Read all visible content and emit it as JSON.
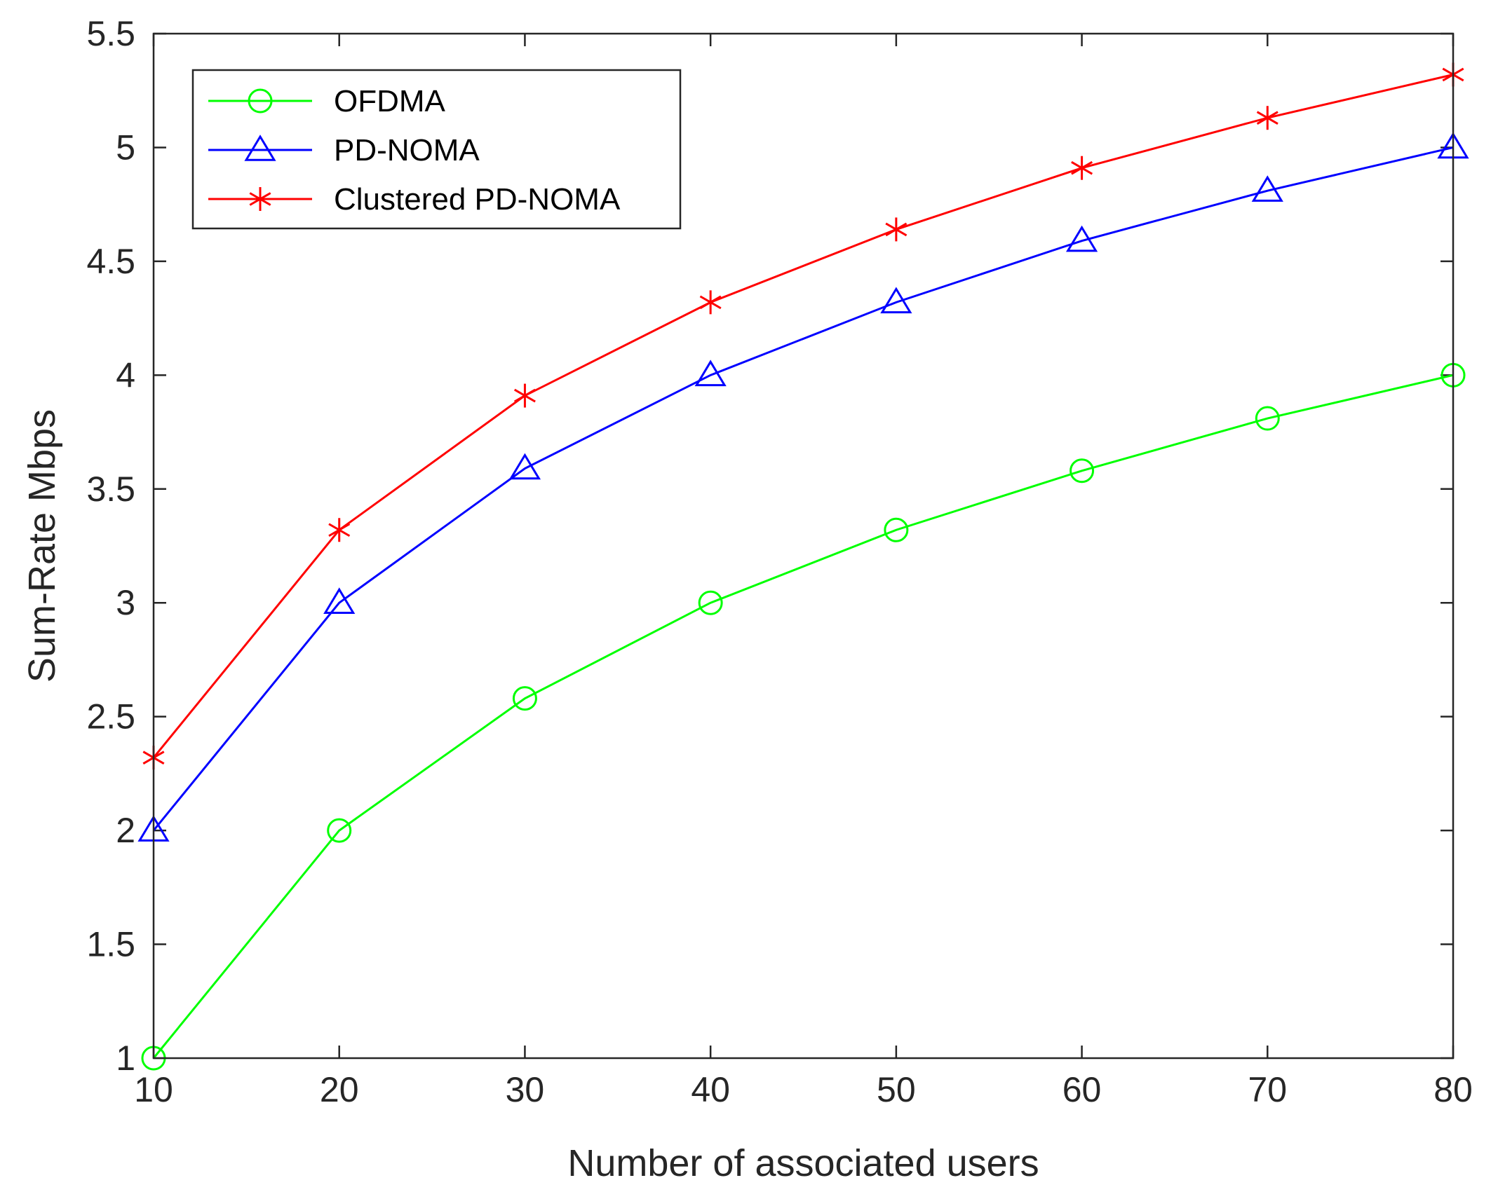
{
  "chart_data": {
    "type": "line",
    "title": "",
    "xlabel": "Number of associated users",
    "ylabel": "Sum-Rate Mbps",
    "x": [
      10,
      20,
      30,
      40,
      50,
      60,
      70,
      80
    ],
    "xlim": [
      10,
      80
    ],
    "ylim": [
      1,
      5.5
    ],
    "xticks": [
      10,
      20,
      30,
      40,
      50,
      60,
      70,
      80
    ],
    "xtick_labels": [
      "10",
      "20",
      "30",
      "40",
      "50",
      "60",
      "70",
      "80"
    ],
    "yticks": [
      1,
      1.5,
      2,
      2.5,
      3,
      3.5,
      4,
      4.5,
      5,
      5.5
    ],
    "ytick_labels": [
      "1",
      "1.5",
      "2",
      "2.5",
      "3",
      "3.5",
      "4",
      "4.5",
      "5",
      "5.5"
    ],
    "grid": false,
    "legend_position": "top-left",
    "series": [
      {
        "name": "OFDMA",
        "color": "#00ff00",
        "marker": "circle",
        "values": [
          1.0,
          2.0,
          2.58,
          3.0,
          3.32,
          3.58,
          3.81,
          4.0
        ]
      },
      {
        "name": "PD-NOMA",
        "color": "#0000ff",
        "marker": "triangle",
        "values": [
          2.0,
          3.0,
          3.59,
          4.0,
          4.32,
          4.59,
          4.81,
          5.0
        ]
      },
      {
        "name": "Clustered PD-NOMA",
        "color": "#ff0000",
        "marker": "asterisk",
        "values": [
          2.32,
          3.32,
          3.91,
          4.32,
          4.64,
          4.91,
          5.13,
          5.32
        ]
      }
    ]
  }
}
